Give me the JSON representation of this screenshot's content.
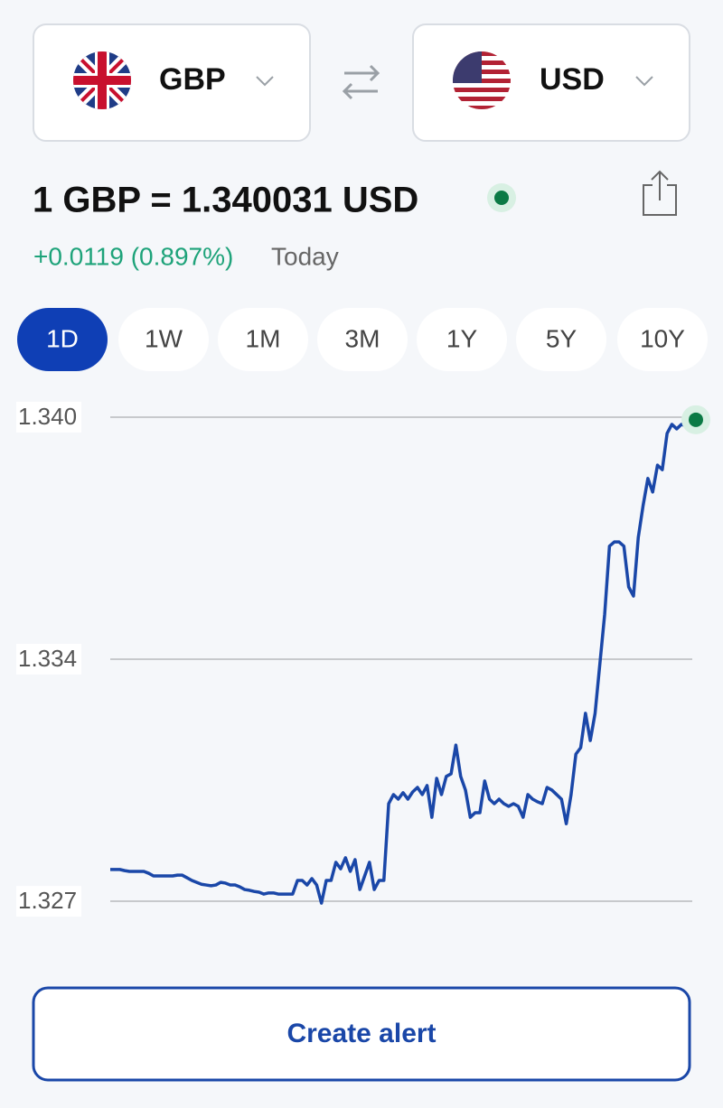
{
  "from": {
    "code": "GBP"
  },
  "to": {
    "code": "USD"
  },
  "rate": "1 GBP = 1.340031 USD",
  "change": "+0.0119 (0.897%)",
  "change_period": "Today",
  "periods": [
    "1D",
    "1W",
    "1M",
    "3M",
    "1Y",
    "5Y",
    "10Y"
  ],
  "active_period": "1D",
  "chart_data": {
    "type": "line",
    "color": "#1a47a8",
    "end_marker_color": "#0b7a45",
    "ylim": [
      1.3268,
      1.3406
    ],
    "yticks": [
      {
        "value": 1.3401,
        "label": "1.340"
      },
      {
        "value": 1.3337,
        "label": "1.334"
      },
      {
        "value": 1.3273,
        "label": "1.327"
      }
    ],
    "grid": true,
    "values": [
      1.32814,
      1.32814,
      1.32814,
      1.32811,
      1.32809,
      1.32809,
      1.32809,
      1.32809,
      1.32804,
      1.32797,
      1.32797,
      1.32797,
      1.32797,
      1.32797,
      1.32799,
      1.32799,
      1.32792,
      1.32785,
      1.3278,
      1.32775,
      1.32773,
      1.32771,
      1.32773,
      1.3278,
      1.32778,
      1.32773,
      1.32773,
      1.32768,
      1.32761,
      1.32759,
      1.32756,
      1.32754,
      1.32749,
      1.32752,
      1.32752,
      1.32749,
      1.32749,
      1.32749,
      1.32749,
      1.32785,
      1.32785,
      1.32773,
      1.3279,
      1.32773,
      1.32725,
      1.32785,
      1.32785,
      1.32833,
      1.32816,
      1.32845,
      1.32809,
      1.3284,
      1.32761,
      1.32797,
      1.32833,
      1.32761,
      1.32785,
      1.32785,
      1.32988,
      1.33012,
      1.33,
      1.33017,
      1.33,
      1.33019,
      1.33031,
      1.33012,
      1.33036,
      1.32952,
      1.33055,
      1.33012,
      1.3306,
      1.33067,
      1.33143,
      1.3306,
      1.33024,
      1.32952,
      1.32964,
      1.32964,
      1.33048,
      1.33,
      1.32988,
      1.33,
      1.32988,
      1.32981,
      1.32988,
      1.32981,
      1.32952,
      1.33012,
      1.33,
      1.32993,
      1.32988,
      1.33031,
      1.33024,
      1.33012,
      1.33,
      1.32935,
      1.33012,
      1.33119,
      1.33136,
      1.33227,
      1.33155,
      1.33227,
      1.33358,
      1.33489,
      1.33669,
      1.3368,
      1.3368,
      1.33669,
      1.33561,
      1.33537,
      1.33692,
      1.33776,
      1.33848,
      1.33812,
      1.33883,
      1.33871,
      1.33967,
      1.33991,
      1.33979,
      1.33991,
      1.33986,
      1.34003,
      1.340031
    ]
  },
  "button": "Create alert"
}
